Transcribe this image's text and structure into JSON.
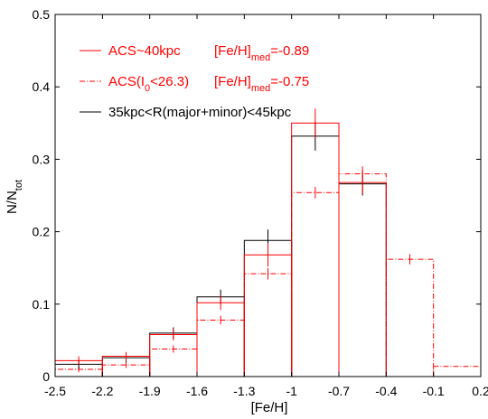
{
  "chart_data": {
    "type": "bar",
    "xlabel": "[Fe/H]",
    "ylabel_main": "N/N",
    "ylabel_sub": "tot",
    "xlim": [
      -2.5,
      0.2
    ],
    "ylim": [
      0,
      0.5
    ],
    "x_ticks": [
      "-2.5",
      "-2.2",
      "-1.9",
      "-1.6",
      "-1.3",
      "-1",
      "-0.7",
      "-0.4",
      "-0.1",
      "0.2"
    ],
    "y_ticks": [
      "0",
      "0.1",
      "0.2",
      "0.3",
      "0.4",
      "0.5"
    ],
    "bin_edges": [
      -2.5,
      -2.2,
      -1.9,
      -1.6,
      -1.3,
      -1.0,
      -0.7,
      -0.4,
      -0.1,
      0.2
    ],
    "series": [
      {
        "name": "ACS~40kpc",
        "color": "#ff0000",
        "style": "solid",
        "values": [
          0.022,
          0.028,
          0.058,
          0.102,
          0.168,
          0.35,
          0.268,
          0,
          0
        ],
        "errors": [
          0.006,
          0.006,
          0.008,
          0.01,
          0.016,
          0.02,
          0.016,
          0,
          0
        ]
      },
      {
        "name": "ACS(I0<26.3)",
        "color": "#ff0000",
        "style": "dashdot",
        "values": [
          0.01,
          0.016,
          0.038,
          0.078,
          0.142,
          0.254,
          0.28,
          0.162,
          0.014
        ],
        "errors": [
          0.004,
          0.004,
          0.005,
          0.006,
          0.008,
          0.008,
          0.01,
          0.007,
          0
        ]
      },
      {
        "name": "35kpc<R(major+minor)<45kpc",
        "color": "#000000",
        "style": "solid",
        "values": [
          0.017,
          0.026,
          0.06,
          0.11,
          0.188,
          0.332,
          0.266,
          0,
          0
        ],
        "errors": [
          0.006,
          0.006,
          0.008,
          0.01,
          0.015,
          0.02,
          0.016,
          0,
          0
        ]
      }
    ],
    "legend": [
      {
        "label": "ACS~40kpc",
        "stat_prefix": "[Fe/H]",
        "stat_sub": "med",
        "stat_value": "=-0.89",
        "color": "#ff0000",
        "style": "solid"
      },
      {
        "label_main": "ACS(I",
        "label_sub": "0",
        "label_rest": "<26.3)",
        "stat_prefix": "[Fe/H]",
        "stat_sub": "med",
        "stat_value": "=-0.75",
        "color": "#ff0000",
        "style": "dashdot"
      },
      {
        "label": "35kpc<R(major+minor)<45kpc",
        "color": "#000000",
        "style": "solid"
      }
    ],
    "legend_position": "top-left",
    "grid": false
  }
}
